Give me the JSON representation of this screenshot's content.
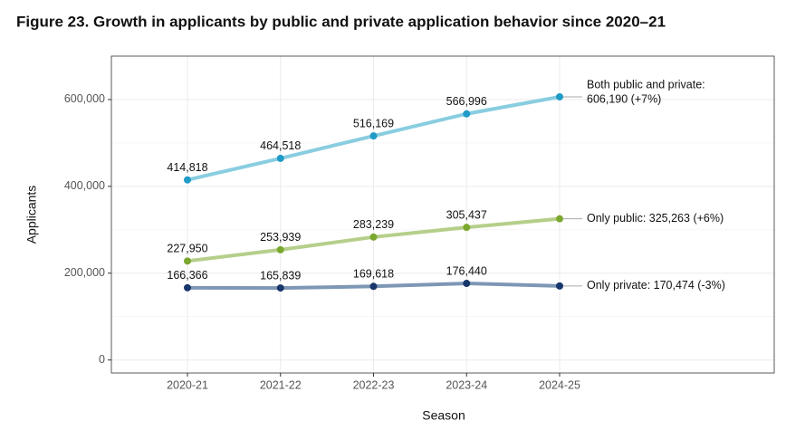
{
  "chart_data": {
    "type": "line",
    "title": "Figure 23. Growth in applicants by public and private application behavior since 2020–21",
    "x_label": "Season",
    "y_label": "Applicants",
    "categories": [
      "2020-21",
      "2021-22",
      "2022-23",
      "2023-24",
      "2024-25"
    ],
    "ylim": [
      -30000,
      700000
    ],
    "yticks": [
      0,
      {
        "value": 200000,
        "label": "200,000"
      },
      {
        "value": 400000,
        "label": "400,000"
      },
      {
        "value": 600000,
        "label": "600,000"
      }
    ],
    "grid": true,
    "series": [
      {
        "name": "Both public and private",
        "color": "#89cde0",
        "point_color": "#1f9bc7",
        "values": [
          414818,
          464518,
          516169,
          566996,
          606190
        ],
        "value_labels": [
          "414,818",
          "464,518",
          "516,169",
          "566,996",
          null
        ],
        "end_label": [
          "Both public and private:",
          "606,190 (+7%)"
        ]
      },
      {
        "name": "Only public",
        "color": "#b5cf8a",
        "point_color": "#7aa82e",
        "values": [
          227950,
          253939,
          283239,
          305437,
          325263
        ],
        "value_labels": [
          "227,950",
          "253,939",
          "283,239",
          "305,437",
          null
        ],
        "end_label": [
          "Only public: 325,263 (+6%)"
        ]
      },
      {
        "name": "Only private",
        "color": "#7d97b5",
        "point_color": "#17366b",
        "values": [
          166366,
          165839,
          169618,
          176440,
          170474
        ],
        "value_labels": [
          "166,366",
          "165,839",
          "169,618",
          "176,440",
          null
        ],
        "end_label": [
          "Only private: 170,474 (-3%)"
        ]
      }
    ]
  }
}
